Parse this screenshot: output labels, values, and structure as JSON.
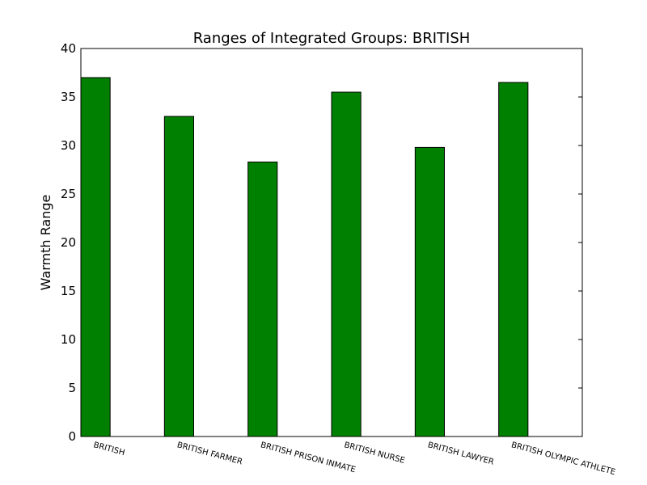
{
  "chart_data": {
    "type": "bar",
    "title": "Ranges of Integrated Groups: BRITISH",
    "xlabel": "",
    "ylabel": "Warmth Range",
    "categories": [
      "BRITISH",
      "BRITISH FARMER",
      "BRITISH PRISON INMATE",
      "BRITISH NURSE",
      "BRITISH LAWYER",
      "BRITISH OLYMPIC ATHLETE"
    ],
    "values": [
      37.0,
      33.0,
      28.3,
      35.5,
      29.8,
      36.5
    ],
    "ylim": [
      0,
      40
    ],
    "yticks": [
      0,
      5,
      10,
      15,
      20,
      25,
      30,
      35,
      40
    ],
    "bar_color": "#008000",
    "grid": false
  }
}
